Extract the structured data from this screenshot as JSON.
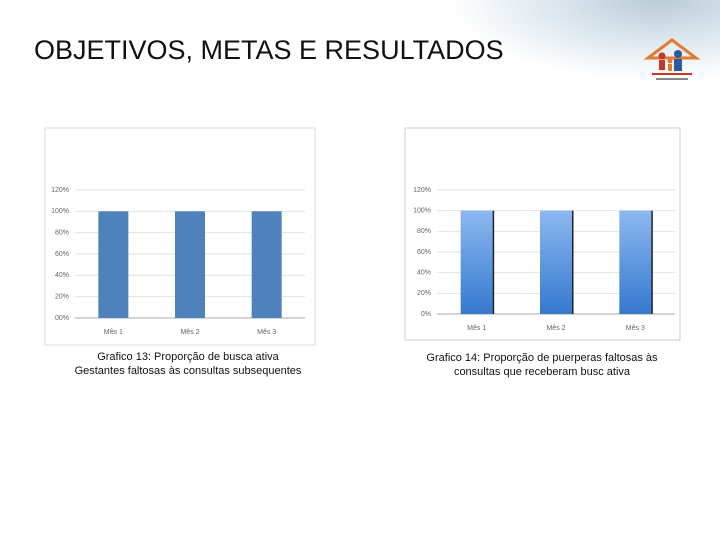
{
  "title": "OBJETIVOS, METAS E RESULTADOS",
  "chart_data": [
    {
      "type": "bar",
      "categories": [
        "Mês 1",
        "Mês 2",
        "Mês 3"
      ],
      "values": [
        100,
        100,
        100
      ],
      "color": "#4f81bd",
      "ylim": [
        0,
        120
      ],
      "yticks": [
        {
          "value": 0,
          "label": "00%"
        },
        {
          "value": 20,
          "label": "20%"
        },
        {
          "value": 40,
          "label": "40%"
        },
        {
          "value": 60,
          "label": "60%"
        },
        {
          "value": 80,
          "label": "80%"
        },
        {
          "value": 100,
          "label": "100%"
        },
        {
          "value": 120,
          "label": "120%"
        }
      ],
      "grid": true,
      "caption": [
        "Grafico 13: Proporção de  busca ativa",
        "Gestantes faltosas às consultas subsequentes"
      ]
    },
    {
      "type": "bar",
      "categories": [
        "Mês 1",
        "Mês 2",
        "Mês 3"
      ],
      "values": [
        100,
        100,
        100
      ],
      "color": "#8cb8f0",
      "ylim": [
        0,
        120
      ],
      "yticks": [
        {
          "value": 0,
          "label": "0%"
        },
        {
          "value": 20,
          "label": "20%"
        },
        {
          "value": 40,
          "label": "40%"
        },
        {
          "value": 60,
          "label": "60%"
        },
        {
          "value": 80,
          "label": "80%"
        },
        {
          "value": 100,
          "label": "100%"
        },
        {
          "value": 120,
          "label": "120%"
        }
      ],
      "grid": true,
      "caption": [
        "Grafico 14: Proporção de puerperas faltosas às",
        "consultas que receberam busc ativa"
      ]
    }
  ]
}
